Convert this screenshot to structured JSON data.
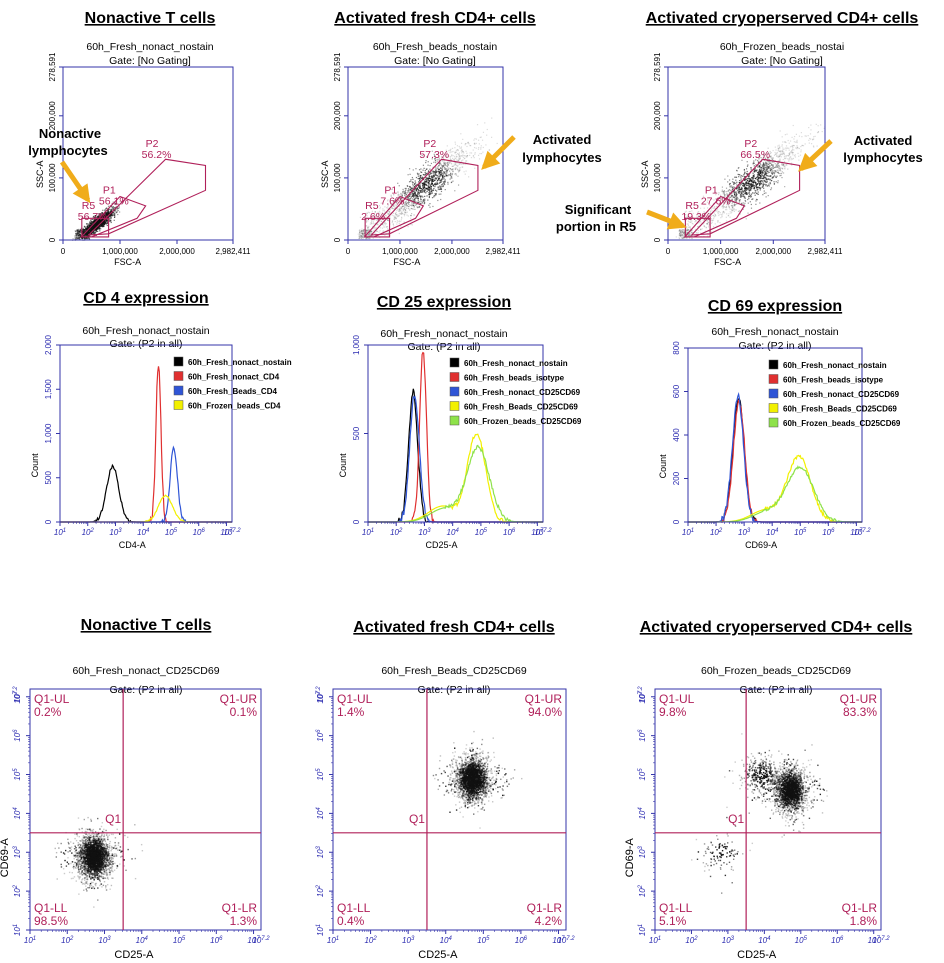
{
  "colors": {
    "axis": "#3333aa",
    "gate": "#b0205a",
    "arrow": "#f0ac1a"
  },
  "chart_data": [
    {
      "type": "scatter",
      "heading": "Nonactive T cells",
      "title": "60h_Fresh_nonact_nostain",
      "subtitle": "Gate: [No Gating]",
      "xlabel": "FSC-A",
      "ylabel": "SSC-A",
      "xlim": [
        0,
        2982411
      ],
      "ylim": [
        0,
        278591
      ],
      "xticks": [
        "0",
        "1,000,000",
        "2,000,000",
        "2,982,411"
      ],
      "yticks": [
        "0",
        "100,000",
        "200,000",
        "278,591"
      ],
      "gates": [
        {
          "name": "P2",
          "percent": "56.2%"
        },
        {
          "name": "P1",
          "percent": "56.1%"
        },
        {
          "name": "R5",
          "percent": "56.7%"
        }
      ],
      "population_center": {
        "fsc": 600000,
        "ssc": 28000
      },
      "annotations": [
        "Nonactive",
        "lymphocytes"
      ]
    },
    {
      "type": "scatter",
      "heading": "Activated fresh CD4+ cells",
      "title": "60h_Fresh_beads_nostain",
      "subtitle": "Gate: [No Gating]",
      "xlabel": "FSC-A",
      "ylabel": "SSC-A",
      "xlim": [
        0,
        2982411
      ],
      "ylim": [
        0,
        278591
      ],
      "xticks": [
        "0",
        "1,000,000",
        "2,000,000",
        "2,982,411"
      ],
      "yticks": [
        "0",
        "100,000",
        "200,000",
        "278,591"
      ],
      "gates": [
        {
          "name": "P2",
          "percent": "57.3%"
        },
        {
          "name": "P1",
          "percent": "7.6%"
        },
        {
          "name": "R5",
          "percent": "2.6%"
        }
      ],
      "population_center": {
        "fsc": 1500000,
        "ssc": 90000
      },
      "annotations": [
        "Activated",
        "lymphocytes"
      ]
    },
    {
      "type": "scatter",
      "heading": "Activated cryoperserved CD4+ cells",
      "title": "60h_Frozen_beads_nostai",
      "subtitle": "Gate: [No Gating]",
      "xlabel": "FSC-A",
      "ylabel": "SSC-A",
      "xlim": [
        0,
        2982411
      ],
      "ylim": [
        0,
        278591
      ],
      "xticks": [
        "0",
        "1,000,000",
        "2,000,000",
        "2,982,411"
      ],
      "yticks": [
        "0",
        "100,000",
        "200,000",
        "278,591"
      ],
      "gates": [
        {
          "name": "P2",
          "percent": "66.5%"
        },
        {
          "name": "P1",
          "percent": "27.6%"
        },
        {
          "name": "R5",
          "percent": "19.3%"
        }
      ],
      "population_center": {
        "fsc": 1600000,
        "ssc": 95000
      },
      "annotations": [
        "Activated",
        "lymphocytes",
        "Significant",
        "portion in R5"
      ]
    },
    {
      "type": "line",
      "heading": "CD 4 expression",
      "title": "60h_Fresh_nonact_nostain",
      "subtitle": "Gate: (P2 in all)",
      "xlabel": "CD4-A",
      "ylabel": "Count",
      "xscale": "log",
      "xlim": [
        1,
        7.2
      ],
      "ylim": [
        0,
        2000
      ],
      "yticks": [
        "0",
        "500",
        "1,000",
        "1,500",
        "2,000"
      ],
      "series": [
        {
          "name": "60h_Fresh_nonact_nostain",
          "color": "#000000",
          "peak_log": 2.9,
          "peak_count": 630,
          "width": 0.22
        },
        {
          "name": "60h_Fresh_nonact_CD4",
          "color": "#e03030",
          "peak_log": 4.55,
          "peak_count": 1800,
          "width": 0.09
        },
        {
          "name": "60h_Fresh_Beads_CD4",
          "color": "#2f55d6",
          "peak_log": 5.1,
          "peak_count": 840,
          "width": 0.13
        },
        {
          "name": "60h_Frozen_beads_CD4",
          "color": "#f2f000",
          "peak_log": 4.8,
          "peak_count": 300,
          "width": 0.25
        }
      ]
    },
    {
      "type": "line",
      "heading": "CD 25 expression",
      "title": "60h_Fresh_nonact_nostain",
      "subtitle": "Gate: (P2 in all)",
      "xlabel": "CD25-A",
      "ylabel": "Count",
      "xscale": "log",
      "xlim": [
        1,
        7.2
      ],
      "ylim": [
        0,
        1000
      ],
      "yticks": [
        "0",
        "500",
        "1,000"
      ],
      "series": [
        {
          "name": "60h_Fresh_nonact_nostain",
          "color": "#000000",
          "peak_log": 2.6,
          "peak_count": 740,
          "width": 0.16
        },
        {
          "name": "60h_Fresh_beads_isotype",
          "color": "#e03030",
          "peak_log": 2.95,
          "peak_count": 960,
          "width": 0.12
        },
        {
          "name": "60h_Fresh_nonact_CD25CD69",
          "color": "#2f55d6",
          "peak_log": 2.65,
          "peak_count": 720,
          "width": 0.17
        },
        {
          "name": "60h_Fresh_Beads_CD25CD69",
          "color": "#f2f000",
          "peak_log": 4.85,
          "peak_count": 500,
          "width": 0.32
        },
        {
          "name": "60h_Frozen_beads_CD25CD69",
          "color": "#8ee24a",
          "peak_log": 4.9,
          "peak_count": 420,
          "width": 0.4
        }
      ]
    },
    {
      "type": "line",
      "heading": "CD 69 expression",
      "title": "60h_Fresh_nonact_nostain",
      "subtitle": "Gate: (P2 in all)",
      "xlabel": "CD69-A",
      "ylabel": "Count",
      "xscale": "log",
      "xlim": [
        1,
        7.2
      ],
      "ylim": [
        0,
        800
      ],
      "yticks": [
        "0",
        "200",
        "400",
        "600",
        "800"
      ],
      "series": [
        {
          "name": "60h_Fresh_nonact_nostain",
          "color": "#000000",
          "peak_log": 2.8,
          "peak_count": 570,
          "width": 0.2
        },
        {
          "name": "60h_Fresh_beads_isotype",
          "color": "#e03030",
          "peak_log": 2.82,
          "peak_count": 560,
          "width": 0.2
        },
        {
          "name": "60h_Fresh_nonact_CD25CD69",
          "color": "#2f55d6",
          "peak_log": 2.78,
          "peak_count": 580,
          "width": 0.2
        },
        {
          "name": "60h_Fresh_Beads_CD25CD69",
          "color": "#f2f000",
          "peak_log": 4.95,
          "peak_count": 300,
          "width": 0.42
        },
        {
          "name": "60h_Frozen_beads_CD25CD69",
          "color": "#8ee24a",
          "peak_log": 5.0,
          "peak_count": 250,
          "width": 0.48
        }
      ]
    },
    {
      "type": "scatter",
      "heading": "Nonactive T cells",
      "title": "60h_Fresh_nonact_CD25CD69",
      "subtitle": "Gate: (P2 in all)",
      "xlabel": "CD25-A",
      "ylabel": "CD69-A",
      "xscale": "log",
      "yscale": "log",
      "xlim": [
        1,
        7.2
      ],
      "ylim": [
        1,
        7.2
      ],
      "quadrant_divider": {
        "x": 3.5,
        "y": 3.5
      },
      "center_label": "Q1",
      "quadrants": [
        {
          "name": "Q1-UL",
          "percent": "0.2%"
        },
        {
          "name": "Q1-UR",
          "percent": "0.1%"
        },
        {
          "name": "Q1-LL",
          "percent": "98.5%"
        },
        {
          "name": "Q1-LR",
          "percent": "1.3%"
        }
      ],
      "clusters": [
        {
          "x": 2.7,
          "y": 2.9,
          "share": 1.0
        }
      ]
    },
    {
      "type": "scatter",
      "heading": "Activated fresh CD4+ cells",
      "title": "60h_Fresh_Beads_CD25CD69",
      "subtitle": "Gate: (P2 in all)",
      "xlabel": "CD25-A",
      "ylabel": "",
      "xscale": "log",
      "yscale": "log",
      "xlim": [
        1,
        7.2
      ],
      "ylim": [
        1,
        7.2
      ],
      "quadrant_divider": {
        "x": 3.5,
        "y": 3.5
      },
      "center_label": "Q1",
      "quadrants": [
        {
          "name": "Q1-UL",
          "percent": "1.4%"
        },
        {
          "name": "Q1-UR",
          "percent": "94.0%"
        },
        {
          "name": "Q1-LL",
          "percent": "0.4%"
        },
        {
          "name": "Q1-LR",
          "percent": "4.2%"
        }
      ],
      "clusters": [
        {
          "x": 4.7,
          "y": 4.9,
          "share": 1.0
        }
      ]
    },
    {
      "type": "scatter",
      "heading": "Activated cryoperserved CD4+ cells",
      "title": "60h_Frozen_beads_CD25CD69",
      "subtitle": "Gate: (P2 in all)",
      "xlabel": "CD25-A",
      "ylabel": "CD69-A",
      "xscale": "log",
      "yscale": "log",
      "xlim": [
        1,
        7.2
      ],
      "ylim": [
        1,
        7.2
      ],
      "quadrant_divider": {
        "x": 3.5,
        "y": 3.5
      },
      "center_label": "Q1",
      "quadrants": [
        {
          "name": "Q1-UL",
          "percent": "9.8%"
        },
        {
          "name": "Q1-UR",
          "percent": "83.3%"
        },
        {
          "name": "Q1-LL",
          "percent": "5.1%"
        },
        {
          "name": "Q1-LR",
          "percent": "1.8%"
        }
      ],
      "clusters": [
        {
          "x": 4.7,
          "y": 4.6,
          "share": 0.8
        },
        {
          "x": 3.9,
          "y": 5.0,
          "share": 0.15
        },
        {
          "x": 2.8,
          "y": 3.0,
          "share": 0.05
        }
      ]
    }
  ]
}
